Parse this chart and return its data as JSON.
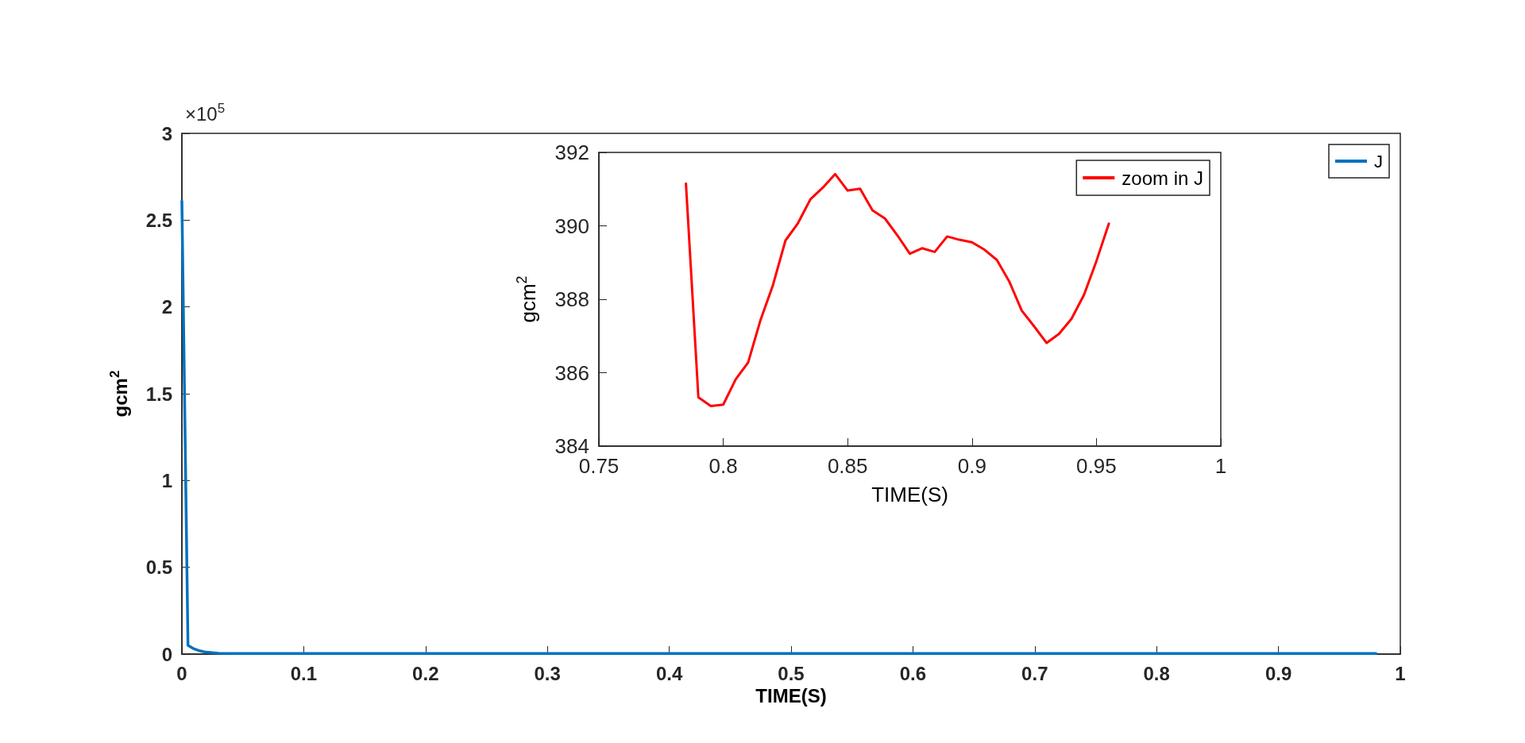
{
  "chart_data": [
    {
      "type": "line",
      "xlabel": "TIME(S)",
      "ylabel": "gcm$^{2}$",
      "annotations": [
        "×10$^{5}$"
      ],
      "legend": "top right",
      "grid": false,
      "marker": "none",
      "xlim": [
        0,
        1
      ],
      "xticks": [
        0,
        0.1,
        0.2,
        0.3,
        0.4,
        0.5,
        0.6,
        0.7,
        0.8,
        0.9,
        1
      ],
      "ylim": [
        0,
        3
      ],
      "yticks": [
        0,
        0.5,
        1,
        1.5,
        2,
        2.5,
        3
      ],
      "series": [
        {
          "name": "J",
          "color": "#0072bd",
          "x": [
            0,
            0.005,
            0.01,
            0.015,
            0.02,
            0.03,
            0.04,
            0.06,
            0.08,
            0.98
          ],
          "values": [
            2.61,
            0.05,
            0.03,
            0.018,
            0.011,
            0.005,
            0.003,
            0.004,
            0.004,
            0.004
          ]
        }
      ]
    },
    {
      "type": "line",
      "xlabel": "TIME(S)",
      "ylabel": "gcm$^{2}$",
      "legend": "top right",
      "grid": false,
      "marker": "none",
      "xlim": [
        0.75,
        1
      ],
      "xticks": [
        0.75,
        0.8,
        0.85,
        0.9,
        0.95,
        1
      ],
      "ylim": [
        384,
        392
      ],
      "yticks": [
        384,
        386,
        388,
        390,
        392
      ],
      "series": [
        {
          "name": "zoom in J",
          "color": "#ff0000",
          "x": [
            0.785,
            0.79,
            0.795,
            0.8,
            0.805,
            0.81,
            0.815,
            0.82,
            0.825,
            0.83,
            0.835,
            0.84,
            0.845,
            0.85,
            0.855,
            0.86,
            0.865,
            0.87,
            0.875,
            0.88,
            0.885,
            0.89,
            0.895,
            0.9,
            0.905,
            0.91,
            0.915,
            0.92,
            0.925,
            0.93,
            0.935,
            0.94,
            0.945,
            0.95,
            0.955
          ],
          "values": [
            391.15,
            385.33,
            385.09,
            385.13,
            385.82,
            386.28,
            387.44,
            388.39,
            389.6,
            390.07,
            390.72,
            391.04,
            391.41,
            390.96,
            391.01,
            390.42,
            390.2,
            389.74,
            389.24,
            389.39,
            389.29,
            389.71,
            389.62,
            389.55,
            389.35,
            389.07,
            388.48,
            387.69,
            387.26,
            386.81,
            387.06,
            387.47,
            388.12,
            389.04,
            390.06
          ]
        }
      ]
    }
  ]
}
